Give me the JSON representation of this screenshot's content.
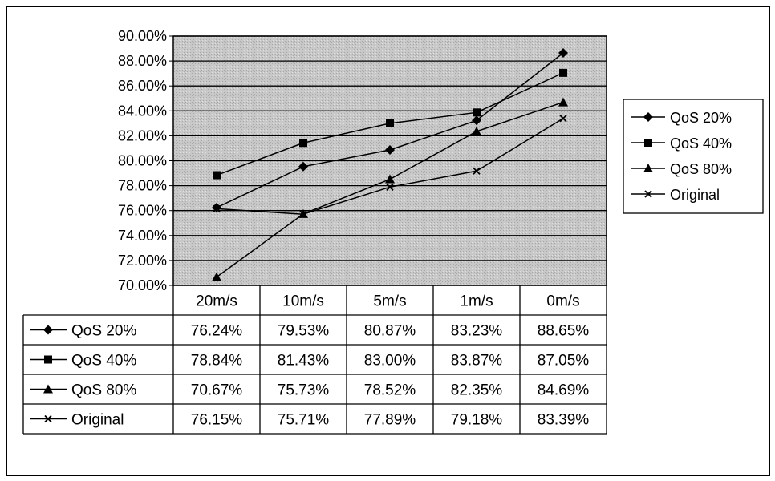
{
  "chart_data": {
    "type": "line",
    "categories": [
      "20m/s",
      "10m/s",
      "5m/s",
      "1m/s",
      "0m/s"
    ],
    "series": [
      {
        "name": "QoS 20%",
        "marker": "diamond",
        "values": [
          76.24,
          79.53,
          80.87,
          83.23,
          88.65
        ],
        "labels": [
          "76.24%",
          "79.53%",
          "80.87%",
          "83.23%",
          "88.65%"
        ]
      },
      {
        "name": "QoS 40%",
        "marker": "square",
        "values": [
          78.84,
          81.43,
          83.0,
          83.87,
          87.05
        ],
        "labels": [
          "78.84%",
          "81.43%",
          "83.00%",
          "83.87%",
          "87.05%"
        ]
      },
      {
        "name": "QoS 80%",
        "marker": "triangle",
        "values": [
          70.67,
          75.73,
          78.52,
          82.35,
          84.69
        ],
        "labels": [
          "70.67%",
          "75.73%",
          "78.52%",
          "82.35%",
          "84.69%"
        ]
      },
      {
        "name": "Original",
        "marker": "x",
        "values": [
          76.15,
          75.71,
          77.89,
          79.18,
          83.39
        ],
        "labels": [
          "76.15%",
          "75.71%",
          "77.89%",
          "79.18%",
          "83.39%"
        ]
      }
    ],
    "yticks": [
      "70.00%",
      "72.00%",
      "74.00%",
      "76.00%",
      "78.00%",
      "80.00%",
      "82.00%",
      "84.00%",
      "86.00%",
      "88.00%",
      "90.00%"
    ],
    "ylim": [
      70,
      90
    ],
    "grid": true,
    "legend": "right",
    "data_table": true,
    "colors": {
      "series": "#000000",
      "plot_area": "#c8c8c8",
      "gridline": "#000000"
    }
  }
}
